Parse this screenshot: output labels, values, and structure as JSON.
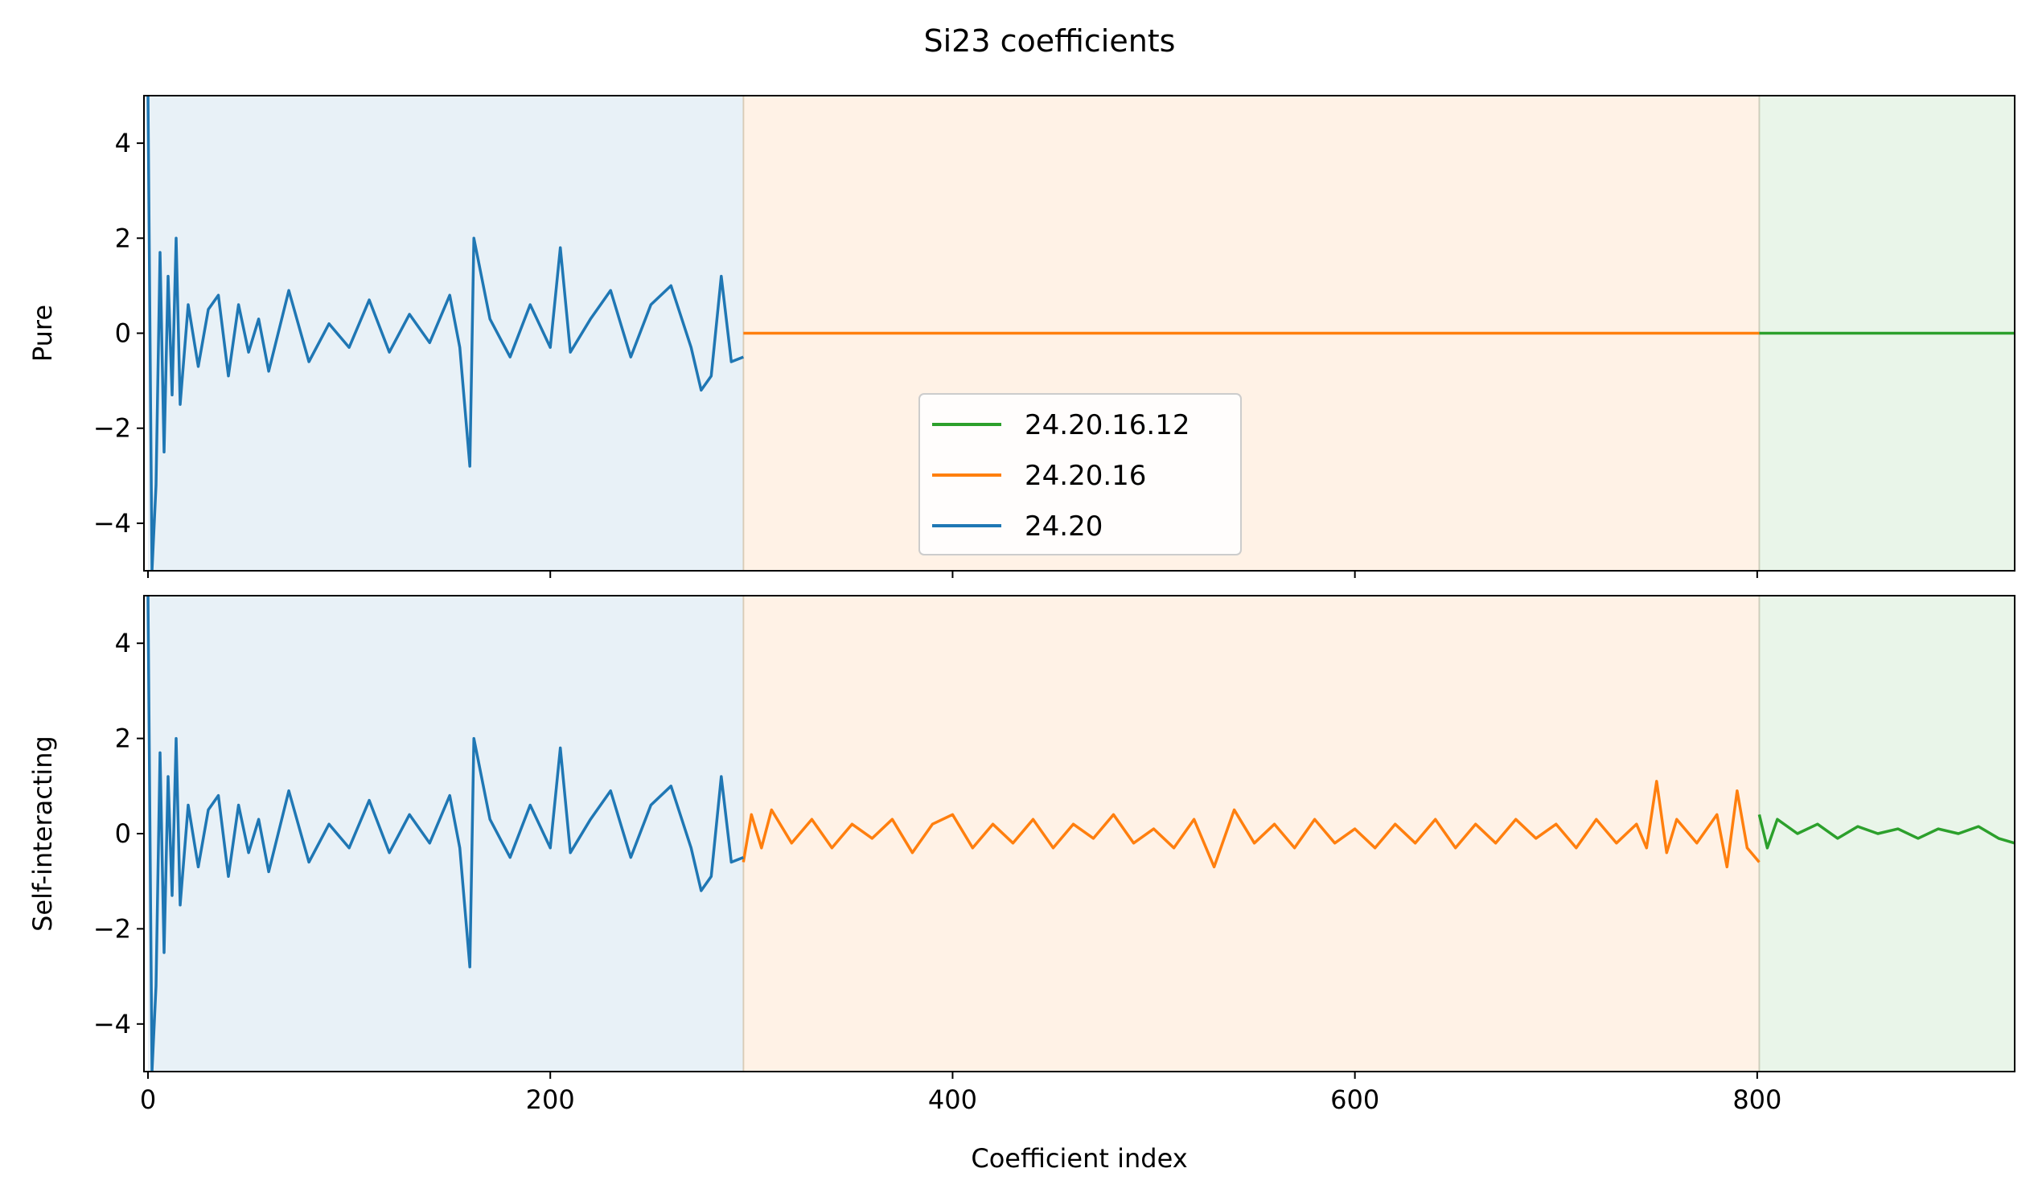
{
  "chart_data": {
    "type": "line",
    "title": "Si23 coefficients",
    "xlabel": "Coefficient index",
    "xlim": [
      -2,
      928
    ],
    "ylim": [
      -5,
      5
    ],
    "xticks": [
      0,
      200,
      400,
      600,
      800
    ],
    "yticks": [
      -4,
      -2,
      0,
      2,
      4
    ],
    "regions": [
      {
        "from": 0,
        "to": 296,
        "color": "#1f77b4",
        "alpha": 0.1
      },
      {
        "from": 296,
        "to": 801,
        "color": "#ff7f0e",
        "alpha": 0.1
      },
      {
        "from": 801,
        "to": 928,
        "color": "#2ca02c",
        "alpha": 0.1
      }
    ],
    "legend": {
      "placement": "lower-center (top panel)",
      "entries": [
        {
          "label": "24.20.16.12",
          "color": "#2ca02c"
        },
        {
          "label": "24.20.16",
          "color": "#ff7f0e"
        },
        {
          "label": "24.20",
          "color": "#1f77b4"
        }
      ]
    },
    "panels": [
      {
        "ylabel": "Pure",
        "series": [
          {
            "name": "24.20",
            "color": "#1f77b4",
            "x": [
              0,
              2,
              4,
              6,
              8,
              10,
              12,
              14,
              16,
              20,
              25,
              30,
              35,
              40,
              45,
              50,
              55,
              60,
              70,
              80,
              90,
              100,
              110,
              120,
              130,
              140,
              150,
              155,
              160,
              162,
              170,
              180,
              190,
              200,
              205,
              210,
              220,
              230,
              240,
              250,
              260,
              270,
              275,
              280,
              285,
              290,
              296
            ],
            "y": [
              5,
              -5,
              -3.2,
              1.7,
              -2.5,
              1.2,
              -1.3,
              2,
              -1.5,
              0.6,
              -0.7,
              0.5,
              0.8,
              -0.9,
              0.6,
              -0.4,
              0.3,
              -0.8,
              0.9,
              -0.6,
              0.2,
              -0.3,
              0.7,
              -0.4,
              0.4,
              -0.2,
              0.8,
              -0.3,
              -2.8,
              2,
              0.3,
              -0.5,
              0.6,
              -0.3,
              1.8,
              -0.4,
              0.3,
              0.9,
              -0.5,
              0.6,
              1,
              -0.3,
              -1.2,
              -0.9,
              1.2,
              -0.6,
              -0.5
            ]
          },
          {
            "name": "24.20.16",
            "color": "#ff7f0e",
            "x": [
              296,
              801
            ],
            "y": [
              0,
              0
            ]
          },
          {
            "name": "24.20.16.12",
            "color": "#2ca02c",
            "x": [
              801,
              928
            ],
            "y": [
              0,
              0
            ]
          }
        ]
      },
      {
        "ylabel": "Self-interacting",
        "series": [
          {
            "name": "24.20.16.12",
            "color": "#2ca02c",
            "x": [
              801,
              805,
              810,
              820,
              830,
              840,
              850,
              860,
              870,
              880,
              890,
              900,
              910,
              920,
              928
            ],
            "y": [
              0.4,
              -0.3,
              0.3,
              0,
              0.2,
              -0.1,
              0.15,
              0,
              0.1,
              -0.1,
              0.1,
              0,
              0.15,
              -0.1,
              -0.2
            ]
          },
          {
            "name": "24.20.16",
            "color": "#ff7f0e",
            "x": [
              296,
              300,
              305,
              310,
              320,
              330,
              340,
              350,
              360,
              370,
              380,
              390,
              400,
              410,
              420,
              430,
              440,
              450,
              460,
              470,
              480,
              490,
              500,
              510,
              520,
              530,
              540,
              550,
              560,
              570,
              580,
              590,
              600,
              610,
              620,
              630,
              640,
              650,
              660,
              670,
              680,
              690,
              700,
              710,
              720,
              730,
              740,
              745,
              750,
              755,
              760,
              770,
              780,
              785,
              790,
              795,
              801
            ],
            "y": [
              -0.6,
              0.4,
              -0.3,
              0.5,
              -0.2,
              0.3,
              -0.3,
              0.2,
              -0.1,
              0.3,
              -0.4,
              0.2,
              0.4,
              -0.3,
              0.2,
              -0.2,
              0.3,
              -0.3,
              0.2,
              -0.1,
              0.4,
              -0.2,
              0.1,
              -0.3,
              0.3,
              -0.7,
              0.5,
              -0.2,
              0.2,
              -0.3,
              0.3,
              -0.2,
              0.1,
              -0.3,
              0.2,
              -0.2,
              0.3,
              -0.3,
              0.2,
              -0.2,
              0.3,
              -0.1,
              0.2,
              -0.3,
              0.3,
              -0.2,
              0.2,
              -0.3,
              1.1,
              -0.4,
              0.3,
              -0.2,
              0.4,
              -0.7,
              0.9,
              -0.3,
              -0.6
            ]
          },
          {
            "name": "24.20",
            "color": "#1f77b4",
            "x": [
              0,
              2,
              4,
              6,
              8,
              10,
              12,
              14,
              16,
              20,
              25,
              30,
              35,
              40,
              45,
              50,
              55,
              60,
              70,
              80,
              90,
              100,
              110,
              120,
              130,
              140,
              150,
              155,
              160,
              162,
              170,
              180,
              190,
              200,
              205,
              210,
              220,
              230,
              240,
              250,
              260,
              270,
              275,
              280,
              285,
              290,
              296
            ],
            "y": [
              5,
              -5,
              -3.2,
              1.7,
              -2.5,
              1.2,
              -1.3,
              2,
              -1.5,
              0.6,
              -0.7,
              0.5,
              0.8,
              -0.9,
              0.6,
              -0.4,
              0.3,
              -0.8,
              0.9,
              -0.6,
              0.2,
              -0.3,
              0.7,
              -0.4,
              0.4,
              -0.2,
              0.8,
              -0.3,
              -2.8,
              2,
              0.3,
              -0.5,
              0.6,
              -0.3,
              1.8,
              -0.4,
              0.3,
              0.9,
              -0.5,
              0.6,
              1,
              -0.3,
              -1.2,
              -0.9,
              1.2,
              -0.6,
              -0.5
            ]
          }
        ]
      }
    ]
  }
}
